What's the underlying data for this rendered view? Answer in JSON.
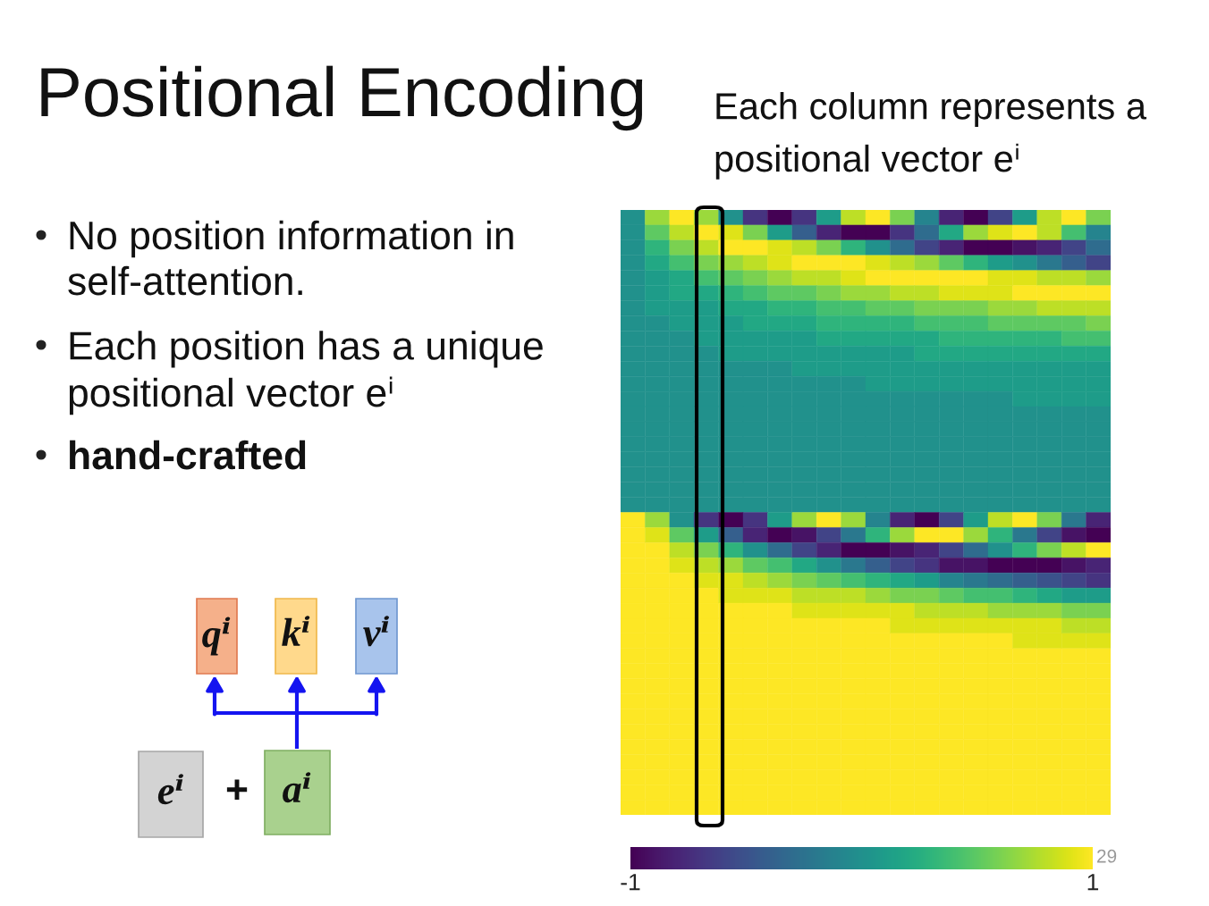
{
  "chart_data": {
    "type": "heatmap",
    "title": "Positional Encoding",
    "subtitle": "Each column represents a\npositional vector eⁱ",
    "annotations": [
      "No position information in\nself-attention.",
      "Each position has a unique\npositional vector eⁱ",
      "hand-crafted",
      "qⁱ",
      "kⁱ",
      "vⁱ",
      "eⁱ",
      "+",
      "aⁱ",
      "29"
    ],
    "categories": [
      null,
      null,
      null,
      null,
      null,
      null,
      null,
      null,
      null,
      null,
      null,
      null,
      null,
      null,
      null,
      null,
      null,
      null,
      null,
      null
    ],
    "y_categories": [
      null,
      null,
      null,
      null,
      null,
      null,
      null,
      null,
      null,
      null,
      null,
      null,
      null,
      null,
      null,
      null,
      null,
      null,
      null,
      null,
      null,
      null,
      null,
      null,
      null,
      null,
      null,
      null,
      null,
      null,
      null,
      null,
      null,
      null,
      null,
      null,
      null,
      null,
      null,
      null
    ],
    "cells": [
      [
        0.0,
        0.7,
        1.0,
        0.7,
        0.0,
        -0.7,
        -1.0,
        -0.7,
        0.1,
        0.8,
        1.0,
        0.6,
        -0.1,
        -0.8,
        -1.0,
        -0.6,
        0.1,
        0.8,
        1.0,
        0.6
      ],
      [
        0.0,
        0.5,
        0.8,
        1.0,
        0.9,
        0.6,
        0.1,
        -0.4,
        -0.8,
        -1.0,
        -1.0,
        -0.7,
        -0.3,
        0.2,
        0.7,
        0.9,
        1.0,
        0.8,
        0.4,
        -0.1
      ],
      [
        0.0,
        0.3,
        0.6,
        0.8,
        1.0,
        1.0,
        0.9,
        0.8,
        0.6,
        0.3,
        0.0,
        -0.3,
        -0.6,
        -0.8,
        -1.0,
        -1.0,
        -0.9,
        -0.8,
        -0.6,
        -0.3
      ],
      [
        0.0,
        0.2,
        0.4,
        0.6,
        0.7,
        0.8,
        0.9,
        1.0,
        1.0,
        1.0,
        0.9,
        0.8,
        0.7,
        0.5,
        0.3,
        0.1,
        0.0,
        -0.2,
        -0.4,
        -0.6
      ],
      [
        0.0,
        0.1,
        0.2,
        0.4,
        0.5,
        0.6,
        0.7,
        0.8,
        0.8,
        0.9,
        1.0,
        1.0,
        1.0,
        1.0,
        1.0,
        0.9,
        0.9,
        0.8,
        0.8,
        0.7
      ],
      [
        0.0,
        0.1,
        0.2,
        0.2,
        0.3,
        0.4,
        0.5,
        0.5,
        0.6,
        0.7,
        0.7,
        0.8,
        0.8,
        0.9,
        0.9,
        0.9,
        1.0,
        1.0,
        1.0,
        1.0
      ],
      [
        0.0,
        0.1,
        0.1,
        0.1,
        0.2,
        0.2,
        0.3,
        0.3,
        0.4,
        0.4,
        0.5,
        0.5,
        0.6,
        0.6,
        0.6,
        0.7,
        0.7,
        0.8,
        0.8,
        0.8
      ],
      [
        0.0,
        0.0,
        0.1,
        0.1,
        0.1,
        0.2,
        0.2,
        0.2,
        0.3,
        0.3,
        0.3,
        0.3,
        0.4,
        0.4,
        0.4,
        0.5,
        0.5,
        0.5,
        0.5,
        0.6
      ],
      [
        0.0,
        0.0,
        0.0,
        0.1,
        0.1,
        0.1,
        0.1,
        0.1,
        0.2,
        0.2,
        0.2,
        0.2,
        0.2,
        0.3,
        0.3,
        0.3,
        0.3,
        0.3,
        0.4,
        0.4
      ],
      [
        0.0,
        0.0,
        0.0,
        0.0,
        0.1,
        0.1,
        0.1,
        0.1,
        0.1,
        0.1,
        0.1,
        0.1,
        0.2,
        0.2,
        0.2,
        0.2,
        0.2,
        0.2,
        0.2,
        0.2
      ],
      [
        0.0,
        0.0,
        0.0,
        0.0,
        0.0,
        0.0,
        0.0,
        0.1,
        0.1,
        0.1,
        0.1,
        0.1,
        0.1,
        0.1,
        0.1,
        0.1,
        0.1,
        0.1,
        0.1,
        0.1
      ],
      [
        0.0,
        0.0,
        0.0,
        0.0,
        0.0,
        0.0,
        0.0,
        0.0,
        0.0,
        0.0,
        0.1,
        0.1,
        0.1,
        0.1,
        0.1,
        0.1,
        0.1,
        0.1,
        0.1,
        0.1
      ],
      [
        0.0,
        0.0,
        0.0,
        0.0,
        0.0,
        0.0,
        0.0,
        0.0,
        0.0,
        0.0,
        0.0,
        0.0,
        0.0,
        0.0,
        0.0,
        0.0,
        0.1,
        0.1,
        0.1,
        0.1
      ],
      [
        0.0,
        0.0,
        0.0,
        0.0,
        0.0,
        0.0,
        0.0,
        0.0,
        0.0,
        0.0,
        0.0,
        0.0,
        0.0,
        0.0,
        0.0,
        0.0,
        0.0,
        0.0,
        0.0,
        0.0
      ],
      [
        0.0,
        0.0,
        0.0,
        0.0,
        0.0,
        0.0,
        0.0,
        0.0,
        0.0,
        0.0,
        0.0,
        0.0,
        0.0,
        0.0,
        0.0,
        0.0,
        0.0,
        0.0,
        0.0,
        0.0
      ],
      [
        0.0,
        0.0,
        0.0,
        0.0,
        0.0,
        0.0,
        0.0,
        0.0,
        0.0,
        0.0,
        0.0,
        0.0,
        0.0,
        0.0,
        0.0,
        0.0,
        0.0,
        0.0,
        0.0,
        0.0
      ],
      [
        0.0,
        0.0,
        0.0,
        0.0,
        0.0,
        0.0,
        0.0,
        0.0,
        0.0,
        0.0,
        0.0,
        0.0,
        0.0,
        0.0,
        0.0,
        0.0,
        0.0,
        0.0,
        0.0,
        0.0
      ],
      [
        0.0,
        0.0,
        0.0,
        0.0,
        0.0,
        0.0,
        0.0,
        0.0,
        0.0,
        0.0,
        0.0,
        0.0,
        0.0,
        0.0,
        0.0,
        0.0,
        0.0,
        0.0,
        0.0,
        0.0
      ],
      [
        0.0,
        0.0,
        0.0,
        0.0,
        0.0,
        0.0,
        0.0,
        0.0,
        0.0,
        0.0,
        0.0,
        0.0,
        0.0,
        0.0,
        0.0,
        0.0,
        0.0,
        0.0,
        0.0,
        0.0
      ],
      [
        0.0,
        0.0,
        0.0,
        0.0,
        0.0,
        0.0,
        0.0,
        0.0,
        0.0,
        0.0,
        0.0,
        0.0,
        0.0,
        0.0,
        0.0,
        0.0,
        0.0,
        0.0,
        0.0,
        0.0
      ],
      [
        1.0,
        0.7,
        0.0,
        -0.7,
        -1.0,
        -0.7,
        0.1,
        0.7,
        1.0,
        0.7,
        -0.1,
        -0.8,
        -1.0,
        -0.6,
        0.1,
        0.8,
        1.0,
        0.6,
        -0.2,
        -0.8
      ],
      [
        1.0,
        0.9,
        0.5,
        0.1,
        -0.4,
        -0.8,
        -1.0,
        -0.9,
        -0.6,
        -0.2,
        0.3,
        0.7,
        1.0,
        1.0,
        0.7,
        0.3,
        -0.2,
        -0.6,
        -0.9,
        -1.0
      ],
      [
        1.0,
        1.0,
        0.8,
        0.6,
        0.3,
        0.0,
        -0.3,
        -0.6,
        -0.8,
        -1.0,
        -1.0,
        -0.9,
        -0.8,
        -0.6,
        -0.3,
        0.0,
        0.3,
        0.6,
        0.8,
        1.0
      ],
      [
        1.0,
        1.0,
        0.9,
        0.8,
        0.7,
        0.5,
        0.4,
        0.2,
        0.0,
        -0.2,
        -0.4,
        -0.6,
        -0.7,
        -0.9,
        -0.9,
        -1.0,
        -1.0,
        -1.0,
        -0.9,
        -0.8
      ],
      [
        1.0,
        1.0,
        1.0,
        0.9,
        0.9,
        0.8,
        0.7,
        0.6,
        0.5,
        0.4,
        0.3,
        0.2,
        0.1,
        -0.1,
        -0.2,
        -0.3,
        -0.4,
        -0.5,
        -0.6,
        -0.7
      ],
      [
        1.0,
        1.0,
        1.0,
        1.0,
        0.9,
        0.9,
        0.9,
        0.8,
        0.8,
        0.8,
        0.7,
        0.6,
        0.6,
        0.5,
        0.4,
        0.4,
        0.3,
        0.2,
        0.1,
        0.1
      ],
      [
        1.0,
        1.0,
        1.0,
        1.0,
        1.0,
        1.0,
        1.0,
        0.9,
        0.9,
        0.9,
        0.9,
        0.9,
        0.8,
        0.8,
        0.8,
        0.7,
        0.7,
        0.7,
        0.6,
        0.6
      ],
      [
        1.0,
        1.0,
        1.0,
        1.0,
        1.0,
        1.0,
        1.0,
        1.0,
        1.0,
        1.0,
        1.0,
        0.9,
        0.9,
        0.9,
        0.9,
        0.9,
        0.9,
        0.9,
        0.8,
        0.8
      ],
      [
        1.0,
        1.0,
        1.0,
        1.0,
        1.0,
        1.0,
        1.0,
        1.0,
        1.0,
        1.0,
        1.0,
        1.0,
        1.0,
        1.0,
        1.0,
        1.0,
        0.9,
        0.9,
        0.9,
        0.9
      ],
      [
        1.0,
        1.0,
        1.0,
        1.0,
        1.0,
        1.0,
        1.0,
        1.0,
        1.0,
        1.0,
        1.0,
        1.0,
        1.0,
        1.0,
        1.0,
        1.0,
        1.0,
        1.0,
        1.0,
        1.0
      ],
      [
        1.0,
        1.0,
        1.0,
        1.0,
        1.0,
        1.0,
        1.0,
        1.0,
        1.0,
        1.0,
        1.0,
        1.0,
        1.0,
        1.0,
        1.0,
        1.0,
        1.0,
        1.0,
        1.0,
        1.0
      ],
      [
        1.0,
        1.0,
        1.0,
        1.0,
        1.0,
        1.0,
        1.0,
        1.0,
        1.0,
        1.0,
        1.0,
        1.0,
        1.0,
        1.0,
        1.0,
        1.0,
        1.0,
        1.0,
        1.0,
        1.0
      ],
      [
        1.0,
        1.0,
        1.0,
        1.0,
        1.0,
        1.0,
        1.0,
        1.0,
        1.0,
        1.0,
        1.0,
        1.0,
        1.0,
        1.0,
        1.0,
        1.0,
        1.0,
        1.0,
        1.0,
        1.0
      ],
      [
        1.0,
        1.0,
        1.0,
        1.0,
        1.0,
        1.0,
        1.0,
        1.0,
        1.0,
        1.0,
        1.0,
        1.0,
        1.0,
        1.0,
        1.0,
        1.0,
        1.0,
        1.0,
        1.0,
        1.0
      ],
      [
        1.0,
        1.0,
        1.0,
        1.0,
        1.0,
        1.0,
        1.0,
        1.0,
        1.0,
        1.0,
        1.0,
        1.0,
        1.0,
        1.0,
        1.0,
        1.0,
        1.0,
        1.0,
        1.0,
        1.0
      ],
      [
        1.0,
        1.0,
        1.0,
        1.0,
        1.0,
        1.0,
        1.0,
        1.0,
        1.0,
        1.0,
        1.0,
        1.0,
        1.0,
        1.0,
        1.0,
        1.0,
        1.0,
        1.0,
        1.0,
        1.0
      ],
      [
        1.0,
        1.0,
        1.0,
        1.0,
        1.0,
        1.0,
        1.0,
        1.0,
        1.0,
        1.0,
        1.0,
        1.0,
        1.0,
        1.0,
        1.0,
        1.0,
        1.0,
        1.0,
        1.0,
        1.0
      ],
      [
        1.0,
        1.0,
        1.0,
        1.0,
        1.0,
        1.0,
        1.0,
        1.0,
        1.0,
        1.0,
        1.0,
        1.0,
        1.0,
        1.0,
        1.0,
        1.0,
        1.0,
        1.0,
        1.0,
        1.0
      ],
      [
        1.0,
        1.0,
        1.0,
        1.0,
        1.0,
        1.0,
        1.0,
        1.0,
        1.0,
        1.0,
        1.0,
        1.0,
        1.0,
        1.0,
        1.0,
        1.0,
        1.0,
        1.0,
        1.0,
        1.0
      ],
      [
        1.0,
        1.0,
        1.0,
        1.0,
        1.0,
        1.0,
        1.0,
        1.0,
        1.0,
        1.0,
        1.0,
        1.0,
        1.0,
        1.0,
        1.0,
        1.0,
        1.0,
        1.0,
        1.0,
        1.0
      ]
    ],
    "clim": [
      -1,
      1
    ],
    "cticks": [
      -1,
      1
    ]
  }
}
